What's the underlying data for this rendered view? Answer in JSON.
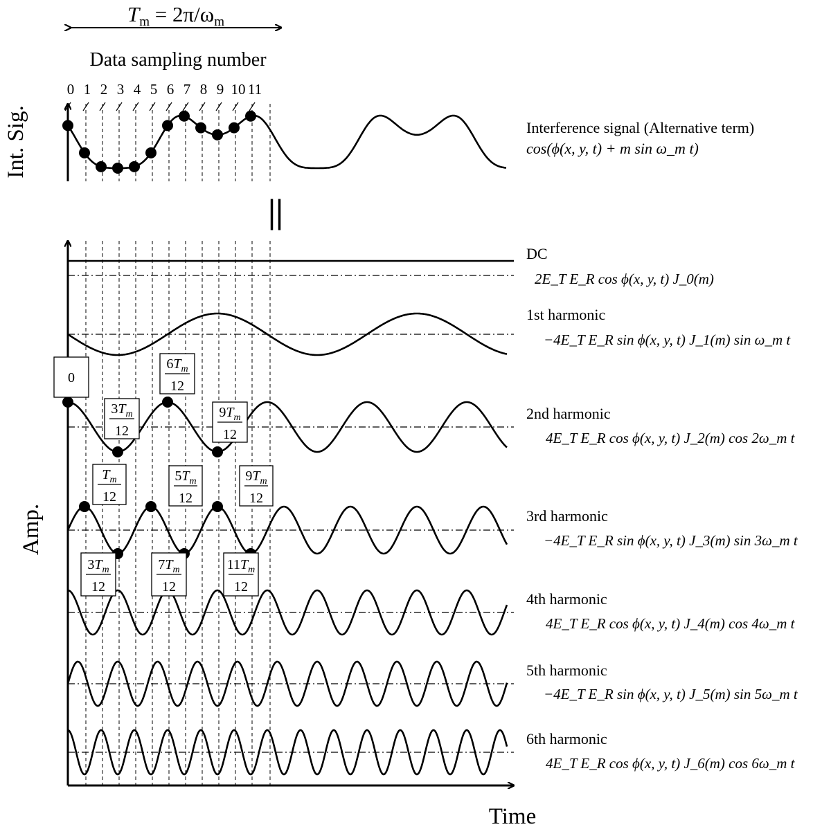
{
  "period_label": "T_m = 2π/ω_m",
  "period_parts": {
    "T": "T",
    "sub_m": "m",
    "rest": " = 2π/ω",
    "sub_m2": "m"
  },
  "sampling_label": "Data sampling number",
  "sampling_numbers": [
    "0",
    "1",
    "2",
    "3",
    "4",
    "5",
    "6",
    "7",
    "8",
    "9",
    "10",
    "11"
  ],
  "top_axis_label": "Int. Sig.",
  "bottom_axis_label": "Amp.",
  "time_label": "Time",
  "equals_symbol": "||",
  "interference": {
    "title": "Interference signal (Alternative term)",
    "equation": "cos(ϕ(x, y, t) + m sin ω_m t)"
  },
  "harmonics": [
    {
      "name": "DC",
      "equation": "2E_T E_R cos ϕ(x, y, t) J_0(m)"
    },
    {
      "name": "1st harmonic",
      "equation": "−4E_T E_R sin ϕ(x, y, t) J_1(m) sin ω_m t"
    },
    {
      "name": "2nd harmonic",
      "equation": "4E_T E_R cos ϕ(x, y, t) J_2(m) cos 2ω_m t"
    },
    {
      "name": "3rd harmonic",
      "equation": "−4E_T E_R sin ϕ(x, y, t) J_3(m) sin 3ω_m t"
    },
    {
      "name": "4th harmonic",
      "equation": "4E_T E_R cos ϕ(x, y, t) J_4(m) cos 4ω_m t"
    },
    {
      "name": "5th harmonic",
      "equation": "−4E_T E_R sin ϕ(x, y, t) J_5(m) sin 5ω_m t"
    },
    {
      "name": "6th harmonic",
      "equation": "4E_T E_R cos ϕ(x, y, t) J_6(m) cos 6ω_m t"
    }
  ],
  "sample_boxes_2nd": [
    "0",
    "6T_m/12",
    "3T_m/12",
    "9T_m/12"
  ],
  "sample_boxes_3rd_top": [
    "T_m/12",
    "5T_m/12",
    "9T_m/12"
  ],
  "sample_boxes_3rd_bottom": [
    "3T_m/12",
    "7T_m/12",
    "11T_m/12"
  ]
}
